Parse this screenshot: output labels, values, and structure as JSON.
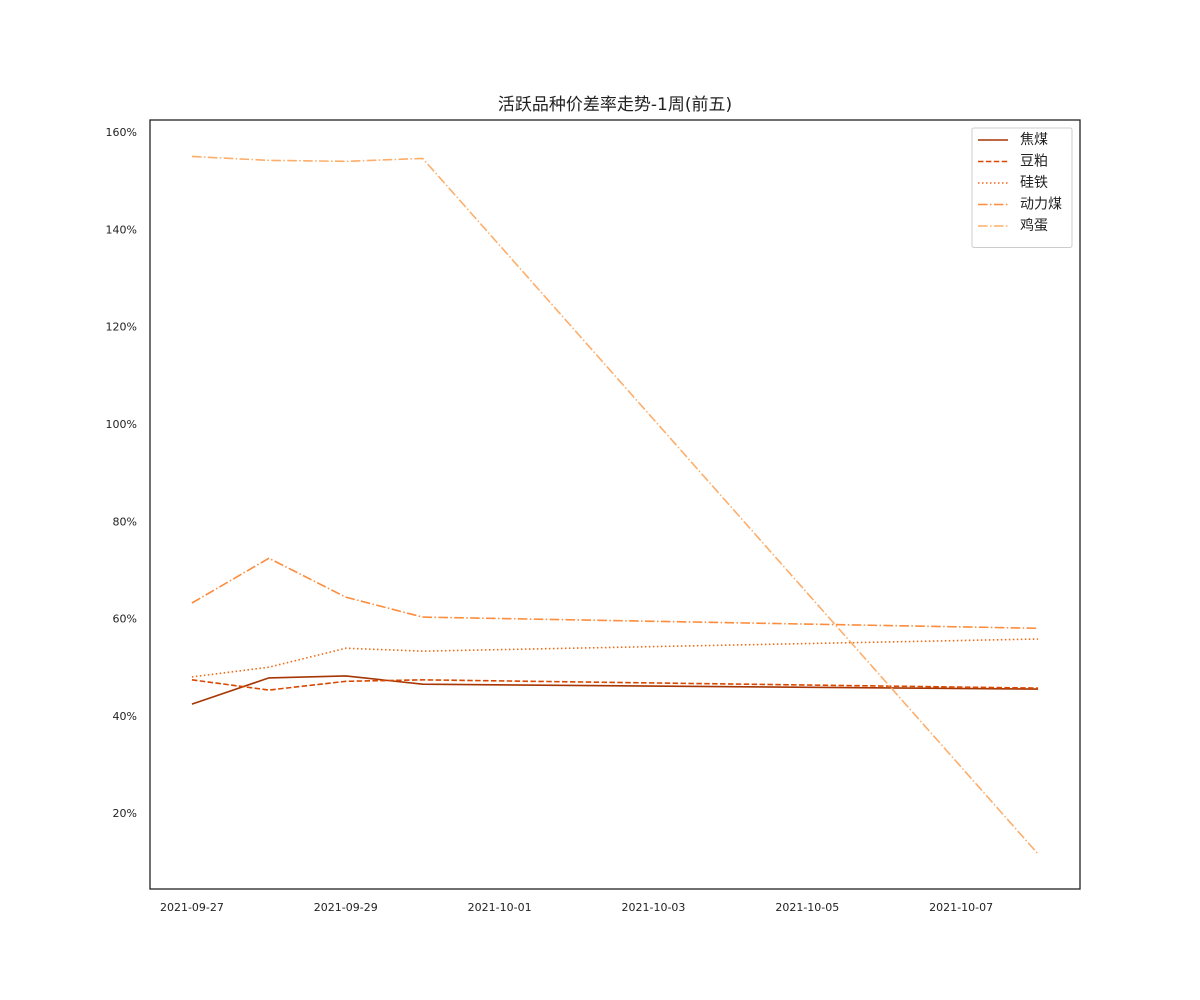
{
  "chart_data": {
    "type": "line",
    "title": "活跃品种价差率走势-1周(前五)",
    "x": [
      "2021-09-27",
      "2021-09-28",
      "2021-09-29",
      "2021-09-30",
      "2021-10-08"
    ],
    "xlim": [
      "2021-09-26T10:55:00Z",
      "2021-10-08T13:05:00Z"
    ],
    "xticks": [
      "2021-09-27",
      "2021-09-29",
      "2021-10-01",
      "2021-10-03",
      "2021-10-05",
      "2021-10-07"
    ],
    "ylim": [
      4.6,
      162.7
    ],
    "yticks": [
      {
        "value": 20,
        "label": "20%"
      },
      {
        "value": 40,
        "label": "40%"
      },
      {
        "value": 60,
        "label": "60%"
      },
      {
        "value": 80,
        "label": "80%"
      },
      {
        "value": 100,
        "label": "100%"
      },
      {
        "value": 120,
        "label": "120%"
      },
      {
        "value": 140,
        "label": "140%"
      },
      {
        "value": 160,
        "label": "160%"
      }
    ],
    "grid": false,
    "legend": "upper right",
    "series": [
      {
        "name": "焦煤",
        "color": "#a63603",
        "linestyle": "solid",
        "values": [
          42.6,
          48.0,
          48.4,
          46.7,
          45.7
        ]
      },
      {
        "name": "豆粕",
        "color": "#d94801",
        "linestyle": "dashed",
        "values": [
          47.6,
          45.5,
          47.3,
          47.6,
          45.9
        ]
      },
      {
        "name": "硅铁",
        "color": "#f16913",
        "linestyle": "dotted",
        "values": [
          48.2,
          50.2,
          54.1,
          53.5,
          56.0
        ]
      },
      {
        "name": "动力煤",
        "color": "#fd8d3c",
        "linestyle": "dashdot",
        "values": [
          63.4,
          72.6,
          64.6,
          60.5,
          58.2
        ]
      },
      {
        "name": "鸡蛋",
        "color": "#fdae6b",
        "linestyle": "dashdot",
        "values": [
          155.2,
          154.4,
          154.2,
          154.8,
          11.8
        ]
      }
    ]
  }
}
